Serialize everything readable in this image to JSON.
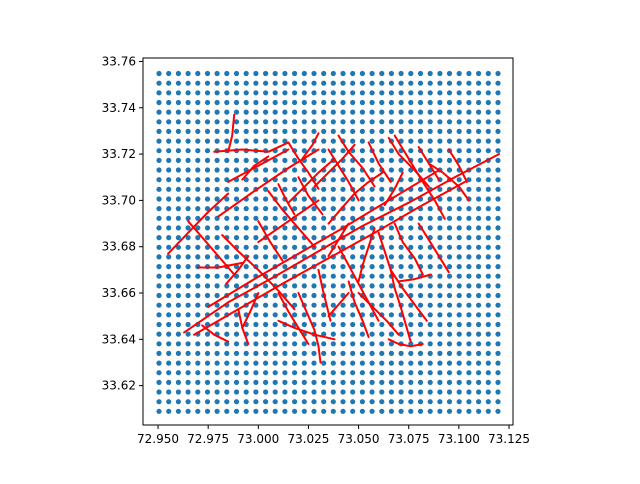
{
  "chart_data": {
    "type": "scatter",
    "title": "",
    "xlabel": "",
    "ylabel": "",
    "xlim": [
      72.9425,
      73.127
    ],
    "ylim": [
      33.603,
      33.7615
    ],
    "grid": false,
    "x_ticks": [
      "72.950",
      "72.975",
      "73.000",
      "73.025",
      "73.050",
      "73.075",
      "73.100",
      "73.125"
    ],
    "y_ticks": [
      "33.62",
      "33.64",
      "33.66",
      "33.68",
      "33.70",
      "33.72",
      "33.74",
      "33.76"
    ],
    "x_tick_values": [
      72.95,
      72.975,
      73.0,
      73.025,
      73.05,
      73.075,
      73.1,
      73.125
    ],
    "y_tick_values": [
      33.62,
      33.64,
      33.66,
      33.68,
      33.7,
      33.72,
      33.74,
      33.76
    ],
    "grid_points": {
      "color": "#1f77b4",
      "x_start": 72.9505,
      "x_end": 73.1195,
      "x_count": 36,
      "y_start": 33.6089,
      "y_end": 33.7548,
      "y_count": 36
    },
    "road_color": "#ff0000",
    "roads": [
      [
        [
          72.963,
          33.643
        ],
        [
          72.985,
          33.656
        ],
        [
          73.008,
          33.667
        ],
        [
          73.03,
          33.678
        ],
        [
          73.052,
          33.689
        ],
        [
          73.075,
          33.699
        ],
        [
          73.098,
          33.71
        ],
        [
          73.12,
          33.72
        ]
      ],
      [
        [
          72.968,
          33.642
        ],
        [
          72.99,
          33.653
        ],
        [
          73.012,
          33.664
        ],
        [
          73.035,
          33.675
        ],
        [
          73.058,
          33.686
        ],
        [
          73.08,
          33.697
        ],
        [
          73.103,
          33.708
        ]
      ],
      [
        [
          72.975,
          33.654
        ],
        [
          72.998,
          33.666
        ],
        [
          73.02,
          33.677
        ],
        [
          73.042,
          33.688
        ],
        [
          73.065,
          33.7
        ],
        [
          73.09,
          33.713
        ]
      ],
      [
        [
          72.98,
          33.693
        ],
        [
          72.998,
          33.704
        ],
        [
          73.015,
          33.714
        ],
        [
          73.03,
          33.722
        ]
      ],
      [
        [
          72.985,
          33.708
        ],
        [
          73.0,
          33.715
        ],
        [
          73.015,
          33.722
        ]
      ],
      [
        [
          72.978,
          33.721
        ],
        [
          72.992,
          33.722
        ],
        [
          73.005,
          33.721
        ],
        [
          73.015,
          33.725
        ]
      ],
      [
        [
          72.985,
          33.721
        ],
        [
          72.987,
          33.728
        ],
        [
          72.988,
          33.737
        ]
      ],
      [
        [
          72.965,
          33.691
        ],
        [
          72.972,
          33.684
        ],
        [
          72.98,
          33.676
        ],
        [
          72.988,
          33.668
        ]
      ],
      [
        [
          72.955,
          33.677
        ],
        [
          72.965,
          33.686
        ],
        [
          72.975,
          33.695
        ],
        [
          72.985,
          33.703
        ]
      ],
      [
        [
          72.97,
          33.671
        ],
        [
          72.98,
          33.671
        ],
        [
          72.992,
          33.673
        ]
      ],
      [
        [
          72.972,
          33.646
        ],
        [
          72.978,
          33.642
        ],
        [
          72.985,
          33.639
        ]
      ],
      [
        [
          72.99,
          33.653
        ],
        [
          72.992,
          33.645
        ],
        [
          72.995,
          33.638
        ]
      ],
      [
        [
          72.982,
          33.685
        ],
        [
          72.99,
          33.678
        ],
        [
          73.0,
          33.67
        ],
        [
          73.01,
          33.661
        ],
        [
          73.018,
          33.653
        ]
      ],
      [
        [
          73.005,
          33.704
        ],
        [
          73.012,
          33.696
        ],
        [
          73.02,
          33.688
        ],
        [
          73.028,
          33.68
        ]
      ],
      [
        [
          73.0,
          33.691
        ],
        [
          73.006,
          33.682
        ],
        [
          73.012,
          33.674
        ]
      ],
      [
        [
          73.02,
          33.71
        ],
        [
          73.025,
          33.702
        ],
        [
          73.032,
          33.694
        ]
      ],
      [
        [
          73.015,
          33.725
        ],
        [
          73.02,
          33.718
        ],
        [
          73.025,
          33.712
        ],
        [
          73.03,
          33.705
        ]
      ],
      [
        [
          73.035,
          33.722
        ],
        [
          73.04,
          33.715
        ],
        [
          73.045,
          33.708
        ],
        [
          73.05,
          33.7
        ]
      ],
      [
        [
          73.04,
          33.728
        ],
        [
          73.045,
          33.721
        ],
        [
          73.052,
          33.714
        ],
        [
          73.058,
          33.706
        ]
      ],
      [
        [
          73.055,
          33.725
        ],
        [
          73.06,
          33.716
        ],
        [
          73.066,
          33.708
        ]
      ],
      [
        [
          73.065,
          33.727
        ],
        [
          73.07,
          33.72
        ],
        [
          73.078,
          33.713
        ],
        [
          73.085,
          33.706
        ]
      ],
      [
        [
          73.068,
          33.728
        ],
        [
          73.075,
          33.718
        ],
        [
          73.082,
          33.708
        ],
        [
          73.088,
          33.7
        ],
        [
          73.093,
          33.692
        ]
      ],
      [
        [
          73.08,
          33.723
        ],
        [
          73.085,
          33.716
        ],
        [
          73.09,
          33.709
        ]
      ],
      [
        [
          73.095,
          33.722
        ],
        [
          73.1,
          33.715
        ],
        [
          73.104,
          33.708
        ]
      ],
      [
        [
          73.085,
          33.716
        ],
        [
          73.092,
          33.712
        ],
        [
          73.1,
          33.706
        ],
        [
          73.105,
          33.7
        ]
      ],
      [
        [
          73.068,
          33.69
        ],
        [
          73.072,
          33.682
        ],
        [
          73.078,
          33.675
        ],
        [
          73.082,
          33.668
        ]
      ],
      [
        [
          73.08,
          33.69
        ],
        [
          73.085,
          33.683
        ],
        [
          73.09,
          33.676
        ],
        [
          73.095,
          33.669
        ]
      ],
      [
        [
          73.063,
          33.698
        ],
        [
          73.068,
          33.705
        ],
        [
          73.072,
          33.712
        ]
      ],
      [
        [
          73.058,
          33.688
        ],
        [
          73.055,
          33.68
        ],
        [
          73.052,
          33.672
        ],
        [
          73.05,
          33.665
        ]
      ],
      [
        [
          73.045,
          33.69
        ],
        [
          73.04,
          33.683
        ],
        [
          73.035,
          33.676
        ]
      ],
      [
        [
          73.04,
          33.68
        ],
        [
          73.045,
          33.672
        ],
        [
          73.05,
          33.664
        ],
        [
          73.055,
          33.656
        ],
        [
          73.06,
          33.648
        ]
      ],
      [
        [
          73.06,
          33.686
        ],
        [
          73.063,
          33.678
        ],
        [
          73.066,
          33.67
        ],
        [
          73.068,
          33.662
        ],
        [
          73.071,
          33.654
        ],
        [
          73.074,
          33.645
        ],
        [
          73.076,
          33.639
        ]
      ],
      [
        [
          73.066,
          33.67
        ],
        [
          73.072,
          33.662
        ],
        [
          73.078,
          33.655
        ],
        [
          73.084,
          33.648
        ]
      ],
      [
        [
          73.07,
          33.665
        ],
        [
          73.078,
          33.666
        ],
        [
          73.086,
          33.668
        ]
      ],
      [
        [
          73.05,
          33.66
        ],
        [
          73.057,
          33.654
        ],
        [
          73.064,
          33.648
        ],
        [
          73.07,
          33.642
        ]
      ],
      [
        [
          73.045,
          33.665
        ],
        [
          73.048,
          33.656
        ],
        [
          73.052,
          33.648
        ],
        [
          73.055,
          33.641
        ]
      ],
      [
        [
          73.065,
          33.64
        ],
        [
          73.07,
          33.638
        ],
        [
          73.076,
          33.637
        ],
        [
          73.082,
          33.638
        ]
      ],
      [
        [
          73.03,
          33.67
        ],
        [
          73.032,
          33.662
        ],
        [
          73.034,
          33.655
        ],
        [
          73.036,
          33.648
        ]
      ],
      [
        [
          73.01,
          33.66
        ],
        [
          73.015,
          33.652
        ],
        [
          73.02,
          33.645
        ],
        [
          73.025,
          33.638
        ]
      ],
      [
        [
          73.02,
          33.66
        ],
        [
          73.024,
          33.652
        ],
        [
          73.028,
          33.644
        ],
        [
          73.03,
          33.637
        ],
        [
          73.031,
          33.63
        ]
      ],
      [
        [
          73.01,
          33.648
        ],
        [
          73.018,
          33.645
        ],
        [
          73.028,
          33.642
        ],
        [
          73.038,
          33.64
        ]
      ],
      [
        [
          73.035,
          33.65
        ],
        [
          73.04,
          33.655
        ],
        [
          73.045,
          33.66
        ]
      ],
      [
        [
          72.995,
          33.676
        ],
        [
          72.99,
          33.67
        ],
        [
          72.984,
          33.664
        ]
      ],
      [
        [
          73.0,
          33.66
        ],
        [
          72.996,
          33.652
        ],
        [
          72.992,
          33.645
        ]
      ],
      [
        [
          73.0,
          33.682
        ],
        [
          73.01,
          33.688
        ],
        [
          73.02,
          33.694
        ],
        [
          73.03,
          33.7
        ]
      ],
      [
        [
          73.015,
          33.699
        ],
        [
          73.022,
          33.705
        ],
        [
          73.03,
          33.712
        ],
        [
          73.038,
          33.718
        ]
      ],
      [
        [
          73.028,
          33.706
        ],
        [
          73.035,
          33.712
        ],
        [
          73.042,
          33.718
        ],
        [
          73.048,
          33.724
        ]
      ],
      [
        [
          73.035,
          33.69
        ],
        [
          73.042,
          33.697
        ],
        [
          73.048,
          33.703
        ]
      ],
      [
        [
          73.048,
          33.703
        ],
        [
          73.055,
          33.708
        ],
        [
          73.062,
          33.712
        ]
      ],
      [
        [
          72.992,
          33.709
        ],
        [
          72.998,
          33.715
        ],
        [
          73.005,
          33.719
        ]
      ],
      [
        [
          73.022,
          33.718
        ],
        [
          73.027,
          33.724
        ],
        [
          73.03,
          33.729
        ]
      ],
      [
        [
          73.01,
          33.707
        ],
        [
          73.014,
          33.7
        ],
        [
          73.018,
          33.694
        ]
      ]
    ]
  }
}
